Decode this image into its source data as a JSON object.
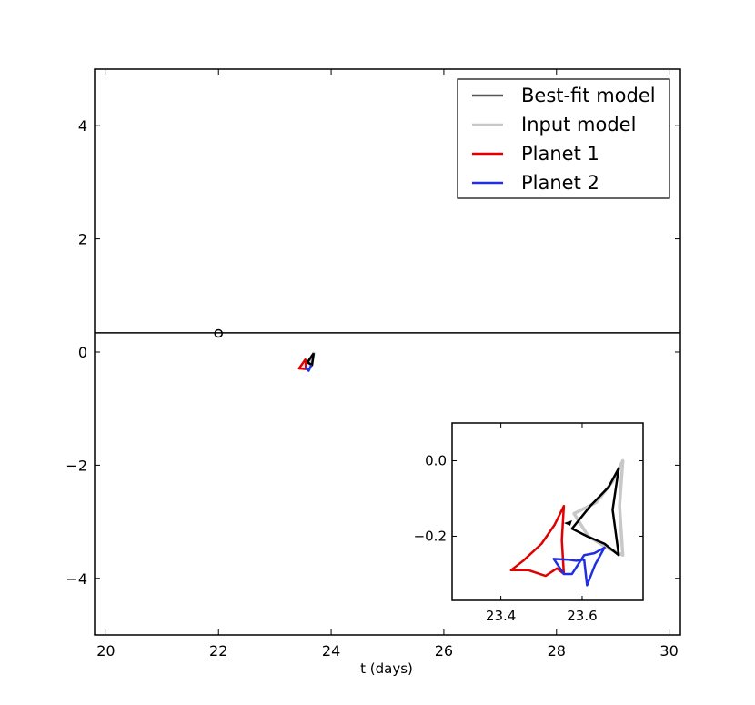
{
  "chart_data": [
    {
      "type": "line",
      "xlabel": "t (days)",
      "ylabel": "",
      "xlim": [
        19.8,
        30.2
      ],
      "ylim": [
        -5,
        5
      ],
      "xticks": [
        20,
        22,
        24,
        26,
        28,
        30
      ],
      "yticks": [
        -4,
        -2,
        0,
        2,
        4
      ],
      "legend": {
        "placement": "top-right",
        "entries": [
          {
            "label": "Best-fit model",
            "color": "#555555"
          },
          {
            "label": "Input model",
            "color": "#c8c8c8"
          },
          {
            "label": "Planet 1",
            "color": "#e00000"
          },
          {
            "label": "Planet 2",
            "color": "#2030e0"
          }
        ]
      },
      "series": [
        {
          "kind": "source-trajectory",
          "color": "#000000",
          "x": [
            19.8,
            30.2
          ],
          "y": [
            0.34,
            0.34
          ]
        },
        {
          "kind": "source-marker",
          "color": "#000000",
          "x": [
            22.0
          ],
          "y": [
            0.33
          ]
        },
        {
          "name": "Input model",
          "color": "#c8c8c8",
          "x": [
            23.7,
            23.58,
            23.66,
            23.7
          ],
          "y": [
            0.0,
            -0.2,
            -0.24,
            0.0
          ]
        },
        {
          "name": "Best-fit model",
          "color": "#000000",
          "x": [
            23.69,
            23.58,
            23.66,
            23.69
          ],
          "y": [
            -0.02,
            -0.18,
            -0.23,
            -0.02
          ]
        },
        {
          "name": "Planet 1",
          "color": "#e00000",
          "x": [
            23.55,
            23.43,
            23.55,
            23.55
          ],
          "y": [
            -0.12,
            -0.29,
            -0.3,
            -0.12
          ]
        },
        {
          "name": "Planet 2",
          "color": "#2030e0",
          "x": [
            23.54,
            23.6,
            23.65
          ],
          "y": [
            -0.26,
            -0.33,
            -0.23
          ]
        }
      ]
    },
    {
      "type": "line",
      "inset": true,
      "xlim": [
        23.28,
        23.75
      ],
      "ylim": [
        -0.37,
        0.1
      ],
      "xticks": [
        23.4,
        23.6
      ],
      "yticks": [
        0.0,
        -0.2
      ],
      "xtick_labels": [
        "23.4",
        "23.6"
      ],
      "ytick_labels": [
        "0.0",
        "−0.2"
      ],
      "series": [
        {
          "name": "Input model",
          "color": "#c8c8c8",
          "width": 3.5,
          "x": [
            23.7,
            23.675,
            23.635,
            23.58,
            23.615,
            23.66,
            23.7,
            23.692,
            23.7
          ],
          "y": [
            0.0,
            -0.055,
            -0.11,
            -0.14,
            -0.2,
            -0.23,
            -0.25,
            -0.12,
            0.0
          ]
        },
        {
          "name": "Best-fit model",
          "color": "#000000",
          "width": 2.5,
          "x": [
            23.69,
            23.665,
            23.62,
            23.575,
            23.612,
            23.655,
            23.69,
            23.675,
            23.69
          ],
          "y": [
            -0.02,
            -0.07,
            -0.12,
            -0.18,
            -0.2,
            -0.22,
            -0.25,
            -0.13,
            -0.02
          ]
        },
        {
          "name": "Planet 1",
          "color": "#e00000",
          "width": 2.5,
          "x": [
            23.555,
            23.532,
            23.5,
            23.455,
            23.425,
            23.468,
            23.51,
            23.538,
            23.555,
            23.55,
            23.555
          ],
          "y": [
            -0.12,
            -0.17,
            -0.22,
            -0.265,
            -0.29,
            -0.29,
            -0.305,
            -0.285,
            -0.3,
            -0.21,
            -0.12
          ]
        },
        {
          "name": "Planet 2",
          "color": "#2030e0",
          "width": 2.5,
          "x": [
            23.53,
            23.565,
            23.585,
            23.605,
            23.612,
            23.632,
            23.655,
            23.63,
            23.605,
            23.575,
            23.555,
            23.53
          ],
          "y": [
            -0.26,
            -0.262,
            -0.265,
            -0.262,
            -0.33,
            -0.275,
            -0.23,
            -0.245,
            -0.25,
            -0.3,
            -0.3,
            -0.26
          ]
        }
      ]
    }
  ]
}
